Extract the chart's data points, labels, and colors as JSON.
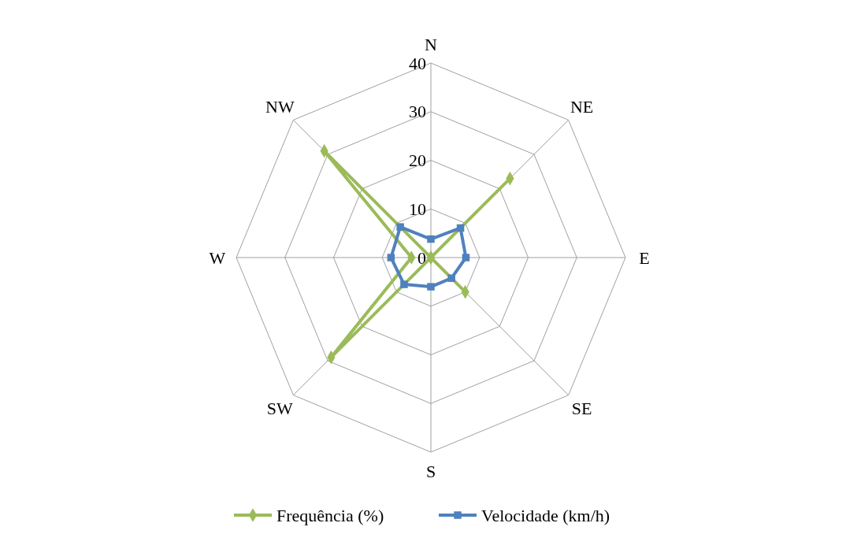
{
  "chart_data": {
    "type": "radar",
    "categories": [
      "N",
      "NE",
      "E",
      "SE",
      "S",
      "SW",
      "W",
      "NW"
    ],
    "series": [
      {
        "name": "Frequência (%)",
        "color": "#9bbb59",
        "marker": "diamond",
        "values": [
          0,
          23,
          0,
          10,
          0,
          29,
          4,
          31
        ]
      },
      {
        "name": "Velocidade (km/h)",
        "color": "#4f81bd",
        "marker": "square",
        "values": [
          3.8,
          8.6,
          7.2,
          6,
          6,
          7.8,
          8.2,
          8.9
        ]
      }
    ],
    "ylim": [
      0,
      40
    ],
    "yticks": [
      0,
      10,
      20,
      30,
      40
    ],
    "grid": true,
    "legend": "bottom",
    "line_style": "solid"
  }
}
